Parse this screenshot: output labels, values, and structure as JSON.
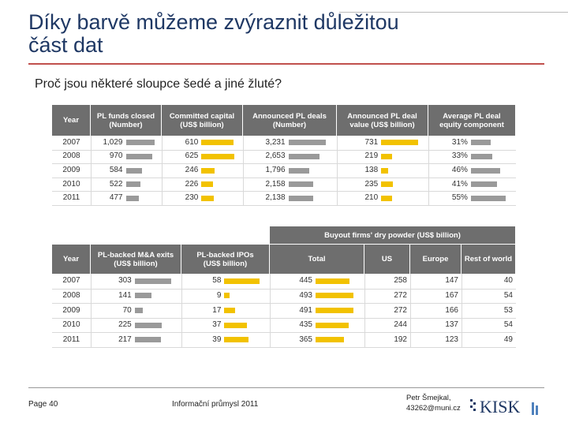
{
  "title": [
    "Díky barvě můžeme zvýraznit důležitou",
    "část dat"
  ],
  "subtitle": "Proč jsou některé sloupce šedé a jiné žluté?",
  "table1": {
    "columns": [
      {
        "header": [
          "Year"
        ]
      },
      {
        "header": [
          "PL funds closed",
          "(Number)"
        ],
        "bar_color": "#9a9a9a"
      },
      {
        "header": [
          "Committed capital",
          "(US$ billion)"
        ],
        "bar_color": "#f2c200"
      },
      {
        "header": [
          "Announced PL deals",
          "(Number)"
        ],
        "bar_color": "#9a9a9a"
      },
      {
        "header": [
          "Announced PL deal",
          "value (US$ billion)"
        ],
        "bar_color": "#f2c200"
      },
      {
        "header": [
          "Average PL deal",
          "equity component"
        ],
        "bar_color": "#9a9a9a"
      }
    ],
    "rows": [
      [
        2007,
        {
          "value": 1029,
          "label": "1,029"
        },
        610,
        {
          "value": 3231,
          "label": "3,231"
        },
        731,
        {
          "value": 31,
          "label": "31%"
        }
      ],
      [
        2008,
        970,
        625,
        {
          "value": 2653,
          "label": "2,653"
        },
        219,
        {
          "value": 33,
          "label": "33%"
        }
      ],
      [
        2009,
        584,
        246,
        {
          "value": 1796,
          "label": "1,796"
        },
        138,
        {
          "value": 46,
          "label": "46%"
        }
      ],
      [
        2010,
        522,
        226,
        {
          "value": 2158,
          "label": "2,158"
        },
        235,
        {
          "value": 41,
          "label": "41%"
        }
      ],
      [
        2011,
        477,
        230,
        {
          "value": 2138,
          "label": "2,138"
        },
        210,
        {
          "value": 55,
          "label": "55%"
        }
      ]
    ]
  },
  "table2": {
    "group_header": "Buyout firms' dry powder (US$ billion)",
    "columns": [
      {
        "header": [
          "Year"
        ]
      },
      {
        "header": [
          "PL-backed M&A exits",
          "(US$ billion)"
        ],
        "bar_color": "#9a9a9a"
      },
      {
        "header": [
          "PL-backed IPOs",
          "(US$ billion)"
        ],
        "bar_color": "#f2c200"
      },
      {
        "header": [
          "Total"
        ],
        "bar_color": "#f2c200"
      },
      {
        "header": [
          "US"
        ]
      },
      {
        "header": [
          "Europe"
        ]
      },
      {
        "header": [
          "Rest of world"
        ]
      }
    ],
    "rows": [
      [
        2007,
        303,
        58,
        445,
        258,
        147,
        40
      ],
      [
        2008,
        141,
        9,
        493,
        272,
        167,
        54
      ],
      [
        2009,
        70,
        17,
        491,
        272,
        166,
        53
      ],
      [
        2010,
        225,
        37,
        435,
        244,
        137,
        54
      ],
      [
        2011,
        217,
        39,
        365,
        192,
        123,
        49
      ]
    ]
  },
  "footer": {
    "page": "Page 40",
    "event": "Informační průmysl 2011",
    "author": [
      "Petr Šmejkal,",
      "43262@muni.cz"
    ],
    "logo": "KISK"
  }
}
